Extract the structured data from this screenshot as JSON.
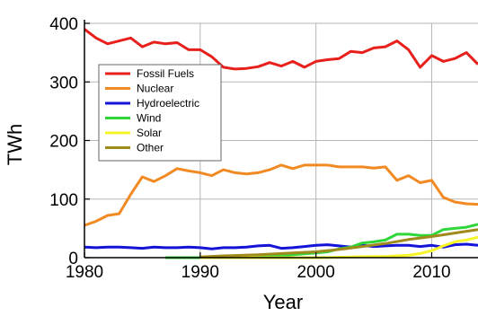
{
  "chart_data": {
    "type": "line",
    "title": "",
    "xlabel": "Year",
    "ylabel": "TWh",
    "xlim": [
      1980,
      2014
    ],
    "ylim": [
      0,
      400
    ],
    "xticks": [
      1980,
      1990,
      2000,
      2010
    ],
    "yticks": [
      0,
      100,
      200,
      300,
      400
    ],
    "grid": true,
    "legend_position": "upper-left",
    "series": [
      {
        "name": "Fossil Fuels",
        "color": "#e8201c",
        "points": [
          [
            1980,
            390
          ],
          [
            1981,
            375
          ],
          [
            1982,
            365
          ],
          [
            1983,
            370
          ],
          [
            1984,
            375
          ],
          [
            1985,
            360
          ],
          [
            1986,
            368
          ],
          [
            1987,
            365
          ],
          [
            1988,
            367
          ],
          [
            1989,
            355
          ],
          [
            1990,
            355
          ],
          [
            1991,
            343
          ],
          [
            1992,
            325
          ],
          [
            1993,
            322
          ],
          [
            1994,
            323
          ],
          [
            1995,
            326
          ],
          [
            1996,
            333
          ],
          [
            1997,
            327
          ],
          [
            1998,
            335
          ],
          [
            1999,
            325
          ],
          [
            2000,
            335
          ],
          [
            2001,
            338
          ],
          [
            2002,
            340
          ],
          [
            2003,
            352
          ],
          [
            2004,
            350
          ],
          [
            2005,
            358
          ],
          [
            2006,
            360
          ],
          [
            2007,
            370
          ],
          [
            2008,
            355
          ],
          [
            2009,
            325
          ],
          [
            2010,
            345
          ],
          [
            2011,
            335
          ],
          [
            2012,
            340
          ],
          [
            2013,
            350
          ],
          [
            2014,
            330
          ]
        ]
      },
      {
        "name": "Nuclear",
        "color": "#f28a23",
        "points": [
          [
            1980,
            55
          ],
          [
            1981,
            62
          ],
          [
            1982,
            72
          ],
          [
            1983,
            75
          ],
          [
            1984,
            108
          ],
          [
            1985,
            138
          ],
          [
            1986,
            130
          ],
          [
            1987,
            140
          ],
          [
            1988,
            152
          ],
          [
            1989,
            148
          ],
          [
            1990,
            145
          ],
          [
            1991,
            140
          ],
          [
            1992,
            150
          ],
          [
            1993,
            145
          ],
          [
            1994,
            143
          ],
          [
            1995,
            145
          ],
          [
            1996,
            150
          ],
          [
            1997,
            158
          ],
          [
            1998,
            152
          ],
          [
            1999,
            158
          ],
          [
            2000,
            158
          ],
          [
            2001,
            158
          ],
          [
            2002,
            155
          ],
          [
            2003,
            155
          ],
          [
            2004,
            155
          ],
          [
            2005,
            153
          ],
          [
            2006,
            155
          ],
          [
            2007,
            132
          ],
          [
            2008,
            140
          ],
          [
            2009,
            128
          ],
          [
            2010,
            132
          ],
          [
            2011,
            103
          ],
          [
            2012,
            95
          ],
          [
            2013,
            92
          ],
          [
            2014,
            91
          ]
        ]
      },
      {
        "name": "Hydroelectric",
        "color": "#1414d8",
        "points": [
          [
            1980,
            18
          ],
          [
            1981,
            17
          ],
          [
            1982,
            18
          ],
          [
            1983,
            18
          ],
          [
            1984,
            17
          ],
          [
            1985,
            16
          ],
          [
            1986,
            18
          ],
          [
            1987,
            17
          ],
          [
            1988,
            17
          ],
          [
            1989,
            18
          ],
          [
            1990,
            17
          ],
          [
            1991,
            15
          ],
          [
            1992,
            17
          ],
          [
            1993,
            17
          ],
          [
            1994,
            18
          ],
          [
            1995,
            20
          ],
          [
            1996,
            21
          ],
          [
            1997,
            16
          ],
          [
            1998,
            17
          ],
          [
            1999,
            19
          ],
          [
            2000,
            21
          ],
          [
            2001,
            22
          ],
          [
            2002,
            20
          ],
          [
            2003,
            18
          ],
          [
            2004,
            21
          ],
          [
            2005,
            19
          ],
          [
            2006,
            20
          ],
          [
            2007,
            21
          ],
          [
            2008,
            21
          ],
          [
            2009,
            19
          ],
          [
            2010,
            21
          ],
          [
            2011,
            18
          ],
          [
            2012,
            22
          ],
          [
            2013,
            23
          ],
          [
            2014,
            21
          ]
        ]
      },
      {
        "name": "Wind",
        "color": "#2fd63a",
        "points": [
          [
            1987,
            0
          ],
          [
            1990,
            0
          ],
          [
            1992,
            1
          ],
          [
            1994,
            2
          ],
          [
            1996,
            3
          ],
          [
            1998,
            5
          ],
          [
            2000,
            8
          ],
          [
            2001,
            10
          ],
          [
            2002,
            15
          ],
          [
            2003,
            18
          ],
          [
            2004,
            25
          ],
          [
            2005,
            27
          ],
          [
            2006,
            30
          ],
          [
            2007,
            40
          ],
          [
            2008,
            40
          ],
          [
            2009,
            38
          ],
          [
            2010,
            38
          ],
          [
            2011,
            48
          ],
          [
            2012,
            50
          ],
          [
            2013,
            52
          ],
          [
            2014,
            57
          ]
        ]
      },
      {
        "name": "Solar",
        "color": "#f5f527",
        "points": [
          [
            1990,
            0
          ],
          [
            1996,
            0
          ],
          [
            2000,
            0
          ],
          [
            2003,
            1
          ],
          [
            2005,
            2
          ],
          [
            2006,
            2
          ],
          [
            2007,
            3
          ],
          [
            2008,
            4
          ],
          [
            2009,
            7
          ],
          [
            2010,
            12
          ],
          [
            2011,
            20
          ],
          [
            2012,
            27
          ],
          [
            2013,
            30
          ],
          [
            2014,
            35
          ]
        ]
      },
      {
        "name": "Other",
        "color": "#a08a1c",
        "points": [
          [
            1990,
            1
          ],
          [
            1992,
            3
          ],
          [
            1995,
            5
          ],
          [
            1998,
            8
          ],
          [
            2000,
            10
          ],
          [
            2002,
            14
          ],
          [
            2004,
            19
          ],
          [
            2006,
            24
          ],
          [
            2008,
            31
          ],
          [
            2010,
            36
          ],
          [
            2012,
            42
          ],
          [
            2014,
            48
          ]
        ]
      }
    ]
  }
}
